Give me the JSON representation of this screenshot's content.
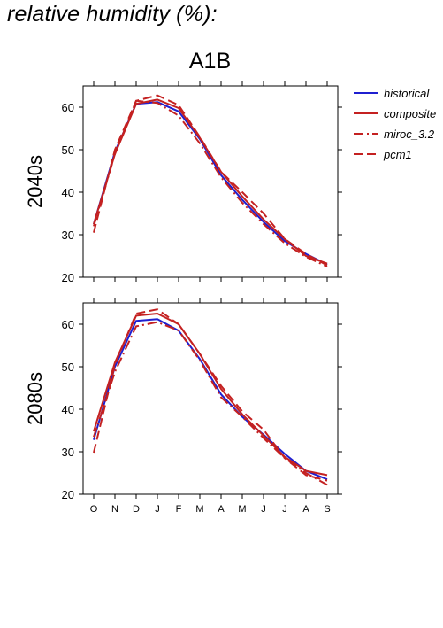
{
  "page_title": "relative humidity (%):",
  "scenario": "A1B",
  "colors": {
    "historical": "#1f1fd0",
    "composite": "#c42121",
    "miroc_3.2": "#c42121",
    "pcm1": "#c42121",
    "axis": "#000000"
  },
  "legend": [
    {
      "key": "historical",
      "label": "historical",
      "style": "solid"
    },
    {
      "key": "composite",
      "label": "composite",
      "style": "solid"
    },
    {
      "key": "miroc_3.2",
      "label": "miroc_3.2",
      "style": "dashdot"
    },
    {
      "key": "pcm1",
      "label": "pcm1",
      "style": "dashed"
    }
  ],
  "chart_data": [
    {
      "type": "line",
      "panel_label": "2040s",
      "x": [
        "O",
        "N",
        "D",
        "J",
        "F",
        "M",
        "A",
        "M",
        "J",
        "J",
        "A",
        "S"
      ],
      "show_x_ticklabels": false,
      "ylim": [
        20,
        65
      ],
      "yticks": [
        20,
        30,
        40,
        50,
        60
      ],
      "series": [
        {
          "name": "historical",
          "style": "solid",
          "values": [
            32.5,
            49.5,
            60.8,
            61.2,
            59.0,
            52.5,
            44.0,
            38.2,
            33.0,
            28.5,
            25.5,
            23.0
          ]
        },
        {
          "name": "composite",
          "style": "solid",
          "values": [
            32.5,
            49.0,
            60.8,
            61.8,
            59.8,
            52.8,
            44.8,
            39.0,
            33.6,
            29.0,
            25.0,
            23.2
          ]
        },
        {
          "name": "miroc_3.2",
          "style": "dashdot",
          "values": [
            32.0,
            49.0,
            61.5,
            61.0,
            58.0,
            51.5,
            43.5,
            37.5,
            32.5,
            28.0,
            24.8,
            22.5
          ]
        },
        {
          "name": "pcm1",
          "style": "dashed",
          "values": [
            30.5,
            50.0,
            61.5,
            62.8,
            60.5,
            53.0,
            44.8,
            40.0,
            35.0,
            29.0,
            25.5,
            22.8
          ]
        }
      ]
    },
    {
      "type": "line",
      "panel_label": "2080s",
      "x": [
        "O",
        "N",
        "D",
        "J",
        "F",
        "M",
        "A",
        "M",
        "J",
        "J",
        "A",
        "S"
      ],
      "show_x_ticklabels": true,
      "ylim": [
        20,
        65
      ],
      "yticks": [
        20,
        30,
        40,
        50,
        60
      ],
      "series": [
        {
          "name": "historical",
          "style": "solid",
          "values": [
            32.8,
            50.0,
            60.8,
            61.2,
            58.5,
            51.8,
            43.5,
            38.2,
            34.0,
            29.5,
            25.5,
            23.5
          ]
        },
        {
          "name": "composite",
          "style": "solid",
          "values": [
            34.8,
            51.0,
            62.0,
            62.5,
            60.0,
            53.0,
            44.8,
            38.8,
            33.8,
            28.8,
            25.5,
            24.5
          ]
        },
        {
          "name": "miroc_3.2",
          "style": "dashdot",
          "values": [
            33.5,
            48.8,
            59.5,
            60.5,
            58.5,
            51.5,
            42.8,
            38.2,
            33.2,
            28.5,
            25.0,
            22.2
          ]
        },
        {
          "name": "pcm1",
          "style": "dashed",
          "values": [
            29.8,
            50.5,
            62.5,
            63.5,
            60.0,
            53.0,
            45.5,
            39.5,
            35.2,
            28.5,
            24.5,
            23.2
          ]
        }
      ]
    }
  ]
}
